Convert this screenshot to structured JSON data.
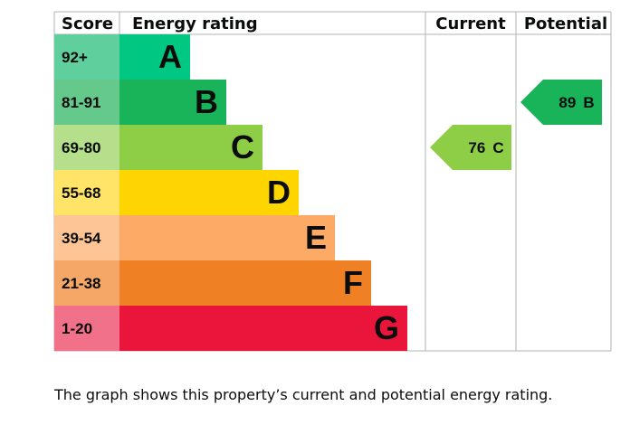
{
  "chart_data": {
    "type": "bar",
    "headers": {
      "score": "Score",
      "rating": "Energy rating",
      "current": "Current",
      "potential": "Potential"
    },
    "bands": [
      {
        "score": "92+",
        "letter": "A",
        "color": "#00c781",
        "score_bg": "#5fcf9e"
      },
      {
        "score": "81-91",
        "letter": "B",
        "color": "#19b459",
        "score_bg": "#66c98c"
      },
      {
        "score": "69-80",
        "letter": "C",
        "color": "#8dce46",
        "score_bg": "#b5df8a"
      },
      {
        "score": "55-68",
        "letter": "D",
        "color": "#ffd500",
        "score_bg": "#ffe467"
      },
      {
        "score": "39-54",
        "letter": "E",
        "color": "#fcaa65",
        "score_bg": "#fdc596"
      },
      {
        "score": "21-38",
        "letter": "F",
        "color": "#ef8023",
        "score_bg": "#f4a767"
      },
      {
        "score": "1-20",
        "letter": "G",
        "color": "#e9153b",
        "score_bg": "#f07189"
      }
    ],
    "current": {
      "value": 76,
      "label": "76",
      "letter": "C",
      "color": "#8dce46"
    },
    "potential": {
      "value": 89,
      "label": "89",
      "letter": "B",
      "color": "#19b459"
    }
  },
  "caption": "The graph shows this property’s current and potential energy rating."
}
